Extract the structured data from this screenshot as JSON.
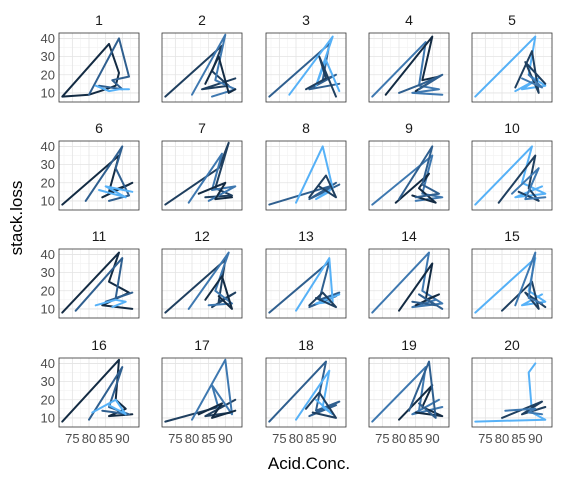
{
  "chart_data": {
    "type": "line",
    "facets": true,
    "xlabel": "Acid.Conc.",
    "ylabel": "stack.loss",
    "xlim": [
      71,
      95
    ],
    "ylim": [
      5,
      43
    ],
    "x_ticks": [
      75,
      80,
      85,
      90
    ],
    "y_ticks": [
      10,
      20,
      30,
      40
    ],
    "grid": true,
    "colors": [
      "#132b43",
      "#1f3f5f",
      "#2f5f8f",
      "#3e78b0",
      "#56b1f7"
    ],
    "panels": [
      {
        "label": "1",
        "series": [
          {
            "x": [
              72,
              86,
              89,
              88,
              85,
              80,
              72
            ],
            "y": [
              8,
              37,
              21,
              14,
              12,
              9,
              8
            ]
          },
          {
            "x": [
              80,
              89,
              92,
              87,
              90,
              83
            ],
            "y": [
              9,
              40,
              19,
              17,
              12,
              14
            ]
          },
          {
            "x": [
              82,
              86,
              89,
              92
            ],
            "y": [
              14,
              11,
              12,
              12
            ]
          }
        ]
      },
      {
        "label": "2",
        "series": [
          {
            "x": [
              72,
              89,
              86,
              91,
              83,
              93
            ],
            "y": [
              8,
              36,
              22,
              14,
              12,
              18
            ]
          },
          {
            "x": [
              80,
              90,
              87,
              93,
              86
            ],
            "y": [
              9,
              42,
              17,
              12,
              8
            ]
          },
          {
            "x": [
              84,
              88,
              91,
              93
            ],
            "y": [
              15,
              30,
              10,
              12
            ]
          }
        ]
      },
      {
        "label": "3",
        "series": [
          {
            "x": [
              72,
              90,
              88,
              92,
              84,
              93
            ],
            "y": [
              8,
              37,
              17,
              20,
              12,
              15
            ]
          },
          {
            "x": [
              78,
              91,
              86,
              89,
              93
            ],
            "y": [
              9,
              41,
              14,
              28,
              11
            ]
          },
          {
            "x": [
              83,
              89,
              87,
              92
            ],
            "y": [
              12,
              18,
              30,
              8
            ]
          }
        ]
      },
      {
        "label": "4",
        "series": [
          {
            "x": [
              72,
              88,
              86,
              92,
              84,
              93
            ],
            "y": [
              8,
              38,
              14,
              12,
              10,
              9
            ]
          },
          {
            "x": [
              76,
              90,
              87,
              92,
              85
            ],
            "y": [
              9,
              41,
              17,
              19,
              11
            ]
          },
          {
            "x": [
              80,
              87,
              93,
              86
            ],
            "y": [
              10,
              15,
              20,
              12
            ]
          }
        ]
      },
      {
        "label": "5",
        "series": [
          {
            "x": [
              72,
              90,
              88,
              93,
              86,
              91,
              84
            ],
            "y": [
              8,
              41,
              20,
              14,
              12,
              18,
              11
            ]
          },
          {
            "x": [
              84,
              89,
              91,
              87,
              93
            ],
            "y": [
              13,
              33,
              10,
              27,
              15
            ]
          },
          {
            "x": [
              86,
              92,
              88
            ],
            "y": [
              18,
              13,
              20
            ]
          }
        ]
      },
      {
        "label": "6",
        "series": [
          {
            "x": [
              72,
              89,
              86,
              92,
              84,
              93
            ],
            "y": [
              8,
              35,
              15,
              19,
              12,
              20
            ]
          },
          {
            "x": [
              79,
              90,
              88,
              92,
              86
            ],
            "y": [
              10,
              40,
              28,
              13,
              10
            ]
          },
          {
            "x": [
              83,
              91,
              85,
              93
            ],
            "y": [
              16,
              12,
              18,
              15
            ]
          }
        ]
      },
      {
        "label": "7",
        "series": [
          {
            "x": [
              72,
              88,
              91,
              87,
              92,
              84
            ],
            "y": [
              8,
              28,
              42,
              17,
              13,
              12
            ]
          },
          {
            "x": [
              79,
              89,
              86,
              93,
              85
            ],
            "y": [
              9,
              36,
              16,
              18,
              10
            ]
          },
          {
            "x": [
              82,
              90,
              87,
              92
            ],
            "y": [
              14,
              20,
              11,
              12
            ]
          }
        ]
      },
      {
        "label": "8",
        "series": [
          {
            "x": [
              72,
              90,
              87,
              92,
              84,
              93
            ],
            "y": [
              8,
              18,
              14,
              20,
              11,
              19
            ]
          },
          {
            "x": [
              80,
              88,
              91,
              86,
              90
            ],
            "y": [
              9,
              40,
              17,
              11,
              15
            ]
          },
          {
            "x": [
              84,
              89,
              92,
              87
            ],
            "y": [
              12,
              24,
              12,
              18
            ]
          }
        ]
      },
      {
        "label": "9",
        "series": [
          {
            "x": [
              72,
              90,
              87,
              93,
              85
            ],
            "y": [
              8,
              35,
              14,
              12,
              10
            ]
          },
          {
            "x": [
              79,
              89,
              86,
              91,
              84
            ],
            "y": [
              9,
              25,
              17,
              9,
              13
            ]
          },
          {
            "x": [
              80,
              90,
              87,
              92,
              85
            ],
            "y": [
              11,
              40,
              19,
              14,
              12
            ]
          }
        ]
      },
      {
        "label": "10",
        "series": [
          {
            "x": [
              72,
              89,
              86,
              93,
              84,
              92
            ],
            "y": [
              8,
              40,
              20,
              14,
              12,
              18
            ]
          },
          {
            "x": [
              79,
              90,
              88,
              91,
              85
            ],
            "y": [
              9,
              35,
              17,
              10,
              15
            ]
          },
          {
            "x": [
              83,
              91,
              87,
              93
            ],
            "y": [
              14,
              28,
              11,
              12
            ]
          }
        ]
      },
      {
        "label": "11",
        "series": [
          {
            "x": [
              72,
              89,
              86,
              92,
              84,
              93
            ],
            "y": [
              8,
              41,
              25,
              19,
              12,
              10
            ]
          },
          {
            "x": [
              76,
              90,
              88,
              93,
              85
            ],
            "y": [
              9,
              38,
              16,
              19,
              14
            ]
          },
          {
            "x": [
              82,
              88,
              91,
              87
            ],
            "y": [
              12,
              15,
              14,
              11
            ]
          }
        ]
      },
      {
        "label": "12",
        "series": [
          {
            "x": [
              72,
              90,
              88,
              93,
              86
            ],
            "y": [
              8,
              37,
              14,
              19,
              11
            ]
          },
          {
            "x": [
              79,
              91,
              87,
              92,
              85
            ],
            "y": [
              10,
              41,
              20,
              13,
              12
            ]
          },
          {
            "x": [
              84,
              89,
              92,
              88
            ],
            "y": [
              15,
              28,
              10,
              17
            ]
          }
        ]
      },
      {
        "label": "13",
        "series": [
          {
            "x": [
              72,
              90,
              87,
              93,
              84,
              92
            ],
            "y": [
              8,
              36,
              15,
              19,
              11,
              17
            ]
          },
          {
            "x": [
              80,
              90,
              91,
              86,
              93
            ],
            "y": [
              9,
              38,
              14,
              13,
              18
            ]
          },
          {
            "x": [
              84,
              88,
              92,
              86
            ],
            "y": [
              12,
              19,
              11,
              16
            ]
          }
        ]
      },
      {
        "label": "14",
        "series": [
          {
            "x": [
              72,
              89,
              87,
              93,
              84,
              91
            ],
            "y": [
              8,
              41,
              20,
              13,
              11,
              15
            ]
          },
          {
            "x": [
              80,
              90,
              88,
              92,
              85
            ],
            "y": [
              9,
              35,
              15,
              18,
              12
            ]
          },
          {
            "x": [
              84,
              91,
              86,
              93
            ],
            "y": [
              14,
              12,
              18,
              10
            ]
          }
        ]
      },
      {
        "label": "15",
        "series": [
          {
            "x": [
              72,
              90,
              88,
              93,
              86,
              92
            ],
            "y": [
              8,
              38,
              20,
              14,
              12,
              18
            ]
          },
          {
            "x": [
              80,
              89,
              91,
              87,
              93
            ],
            "y": [
              9,
              25,
              10,
              19,
              11
            ]
          },
          {
            "x": [
              84,
              90,
              88,
              92
            ],
            "y": [
              12,
              41,
              16,
              13
            ]
          }
        ]
      },
      {
        "label": "16",
        "series": [
          {
            "x": [
              72,
              89,
              88,
              91,
              86,
              93
            ],
            "y": [
              8,
              42,
              20,
              15,
              11,
              12
            ]
          },
          {
            "x": [
              80,
              90,
              86,
              92,
              84
            ],
            "y": [
              9,
              38,
              16,
              12,
              14
            ]
          },
          {
            "x": [
              81,
              88,
              91,
              86
            ],
            "y": [
              13,
              20,
              12,
              17
            ]
          }
        ]
      },
      {
        "label": "17",
        "series": [
          {
            "x": [
              72,
              90,
              87,
              93,
              84,
              92
            ],
            "y": [
              8,
              17,
              14,
              20,
              11,
              13
            ]
          },
          {
            "x": [
              80,
              90,
              92,
              86,
              88
            ],
            "y": [
              9,
              42,
              12,
              28,
              15
            ]
          },
          {
            "x": [
              82,
              89,
              86,
              93
            ],
            "y": [
              12,
              18,
              10,
              14
            ]
          }
        ]
      },
      {
        "label": "18",
        "series": [
          {
            "x": [
              72,
              89,
              86,
              93,
              84,
              92
            ],
            "y": [
              8,
              41,
              14,
              19,
              11,
              17
            ]
          },
          {
            "x": [
              80,
              90,
              88,
              91,
              86
            ],
            "y": [
              9,
              36,
              16,
              12,
              20
            ]
          },
          {
            "x": [
              83,
              87,
              92,
              85
            ],
            "y": [
              15,
              24,
              10,
              13
            ]
          }
        ]
      },
      {
        "label": "19",
        "series": [
          {
            "x": [
              72,
              88,
              86,
              92,
              84,
              93
            ],
            "y": [
              8,
              38,
              14,
              20,
              12,
              16
            ]
          },
          {
            "x": [
              80,
              90,
              87,
              93,
              85
            ],
            "y": [
              9,
              28,
              16,
              11,
              13
            ]
          },
          {
            "x": [
              83,
              89,
              91,
              86
            ],
            "y": [
              14,
              41,
              10,
              18
            ]
          }
        ]
      },
      {
        "label": "20",
        "series": [
          {
            "x": [
              72,
              93,
              89,
              88,
              90
            ],
            "y": [
              8,
              9,
              13,
              35,
              40
            ]
          },
          {
            "x": [
              80,
              92,
              86,
              93
            ],
            "y": [
              10,
              19,
              12,
              16
            ]
          },
          {
            "x": [
              81,
              90,
              88,
              92
            ],
            "y": [
              14,
              15,
              13,
              12
            ]
          }
        ]
      }
    ]
  }
}
